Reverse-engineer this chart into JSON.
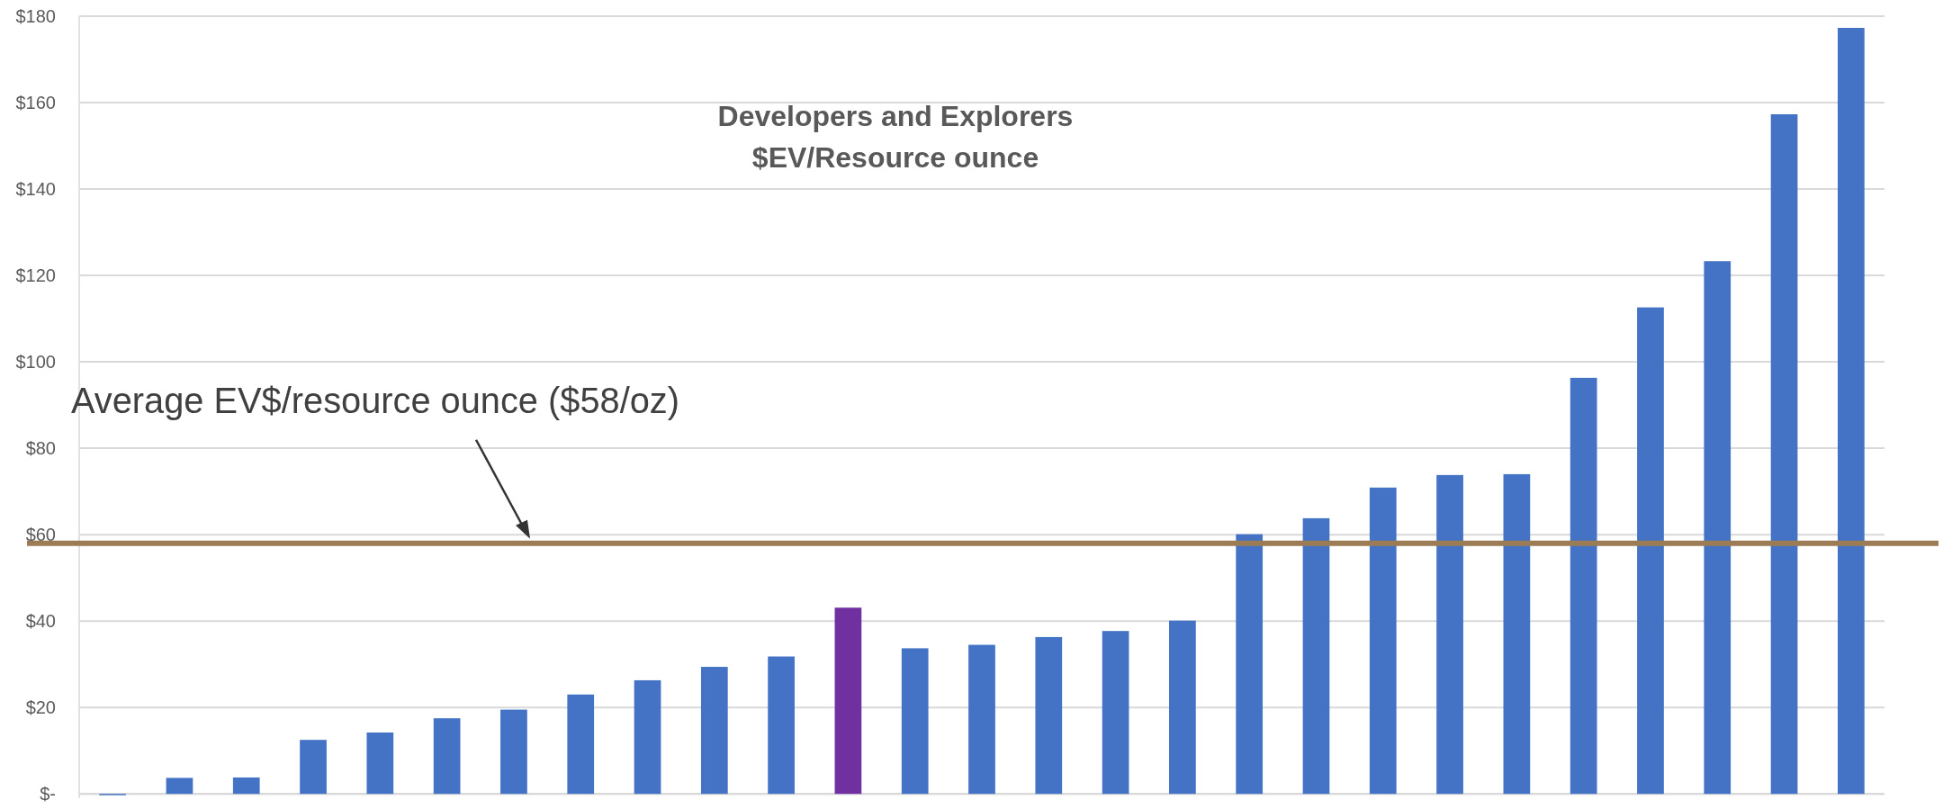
{
  "chart_data": {
    "type": "bar",
    "title": "Developers and Explorers\n$EV/Resource ounce",
    "categories": [
      null,
      null,
      null,
      null,
      null,
      null,
      null,
      null,
      null,
      null,
      null,
      null,
      null,
      null,
      null,
      null,
      null,
      null,
      null,
      null,
      null,
      null,
      null,
      null,
      null,
      null,
      null
    ],
    "values": [
      -0.3,
      3.7,
      3.8,
      12.5,
      14.2,
      17.5,
      19.5,
      23.0,
      26.3,
      29.4,
      31.8,
      43.1,
      33.7,
      34.5,
      36.3,
      37.7,
      40.1,
      60.1,
      63.8,
      70.9,
      73.8,
      74.0,
      96.3,
      112.6,
      123.3,
      157.3,
      177.3
    ],
    "colors": [
      "#4472c4",
      "#4472c4",
      "#4472c4",
      "#4472c4",
      "#4472c4",
      "#4472c4",
      "#4472c4",
      "#4472c4",
      "#4472c4",
      "#4472c4",
      "#4472c4",
      "#7030a0",
      "#4472c4",
      "#4472c4",
      "#4472c4",
      "#4472c4",
      "#4472c4",
      "#4472c4",
      "#4472c4",
      "#4472c4",
      "#4472c4",
      "#4472c4",
      "#4472c4",
      "#4472c4",
      "#4472c4",
      "#4472c4",
      "#4472c4"
    ],
    "ylim": [
      -1,
      180
    ],
    "yticks": [
      {
        "value": 0,
        "label": "$-"
      },
      {
        "value": 20,
        "label": "$20"
      },
      {
        "value": 40,
        "label": "$40"
      },
      {
        "value": 60,
        "label": "$60"
      },
      {
        "value": 80,
        "label": "$80"
      },
      {
        "value": 100,
        "label": "$100"
      },
      {
        "value": 120,
        "label": "$120"
      },
      {
        "value": 140,
        "label": "$140"
      },
      {
        "value": 160,
        "label": "$160"
      },
      {
        "value": 180,
        "label": "$180"
      }
    ],
    "grid": "y",
    "annotations": [
      "Average EV$/resource ounce ($58/oz)"
    ],
    "ref_lines": [
      {
        "axis": "y",
        "value": 58,
        "color": "#9c7c54"
      }
    ]
  }
}
